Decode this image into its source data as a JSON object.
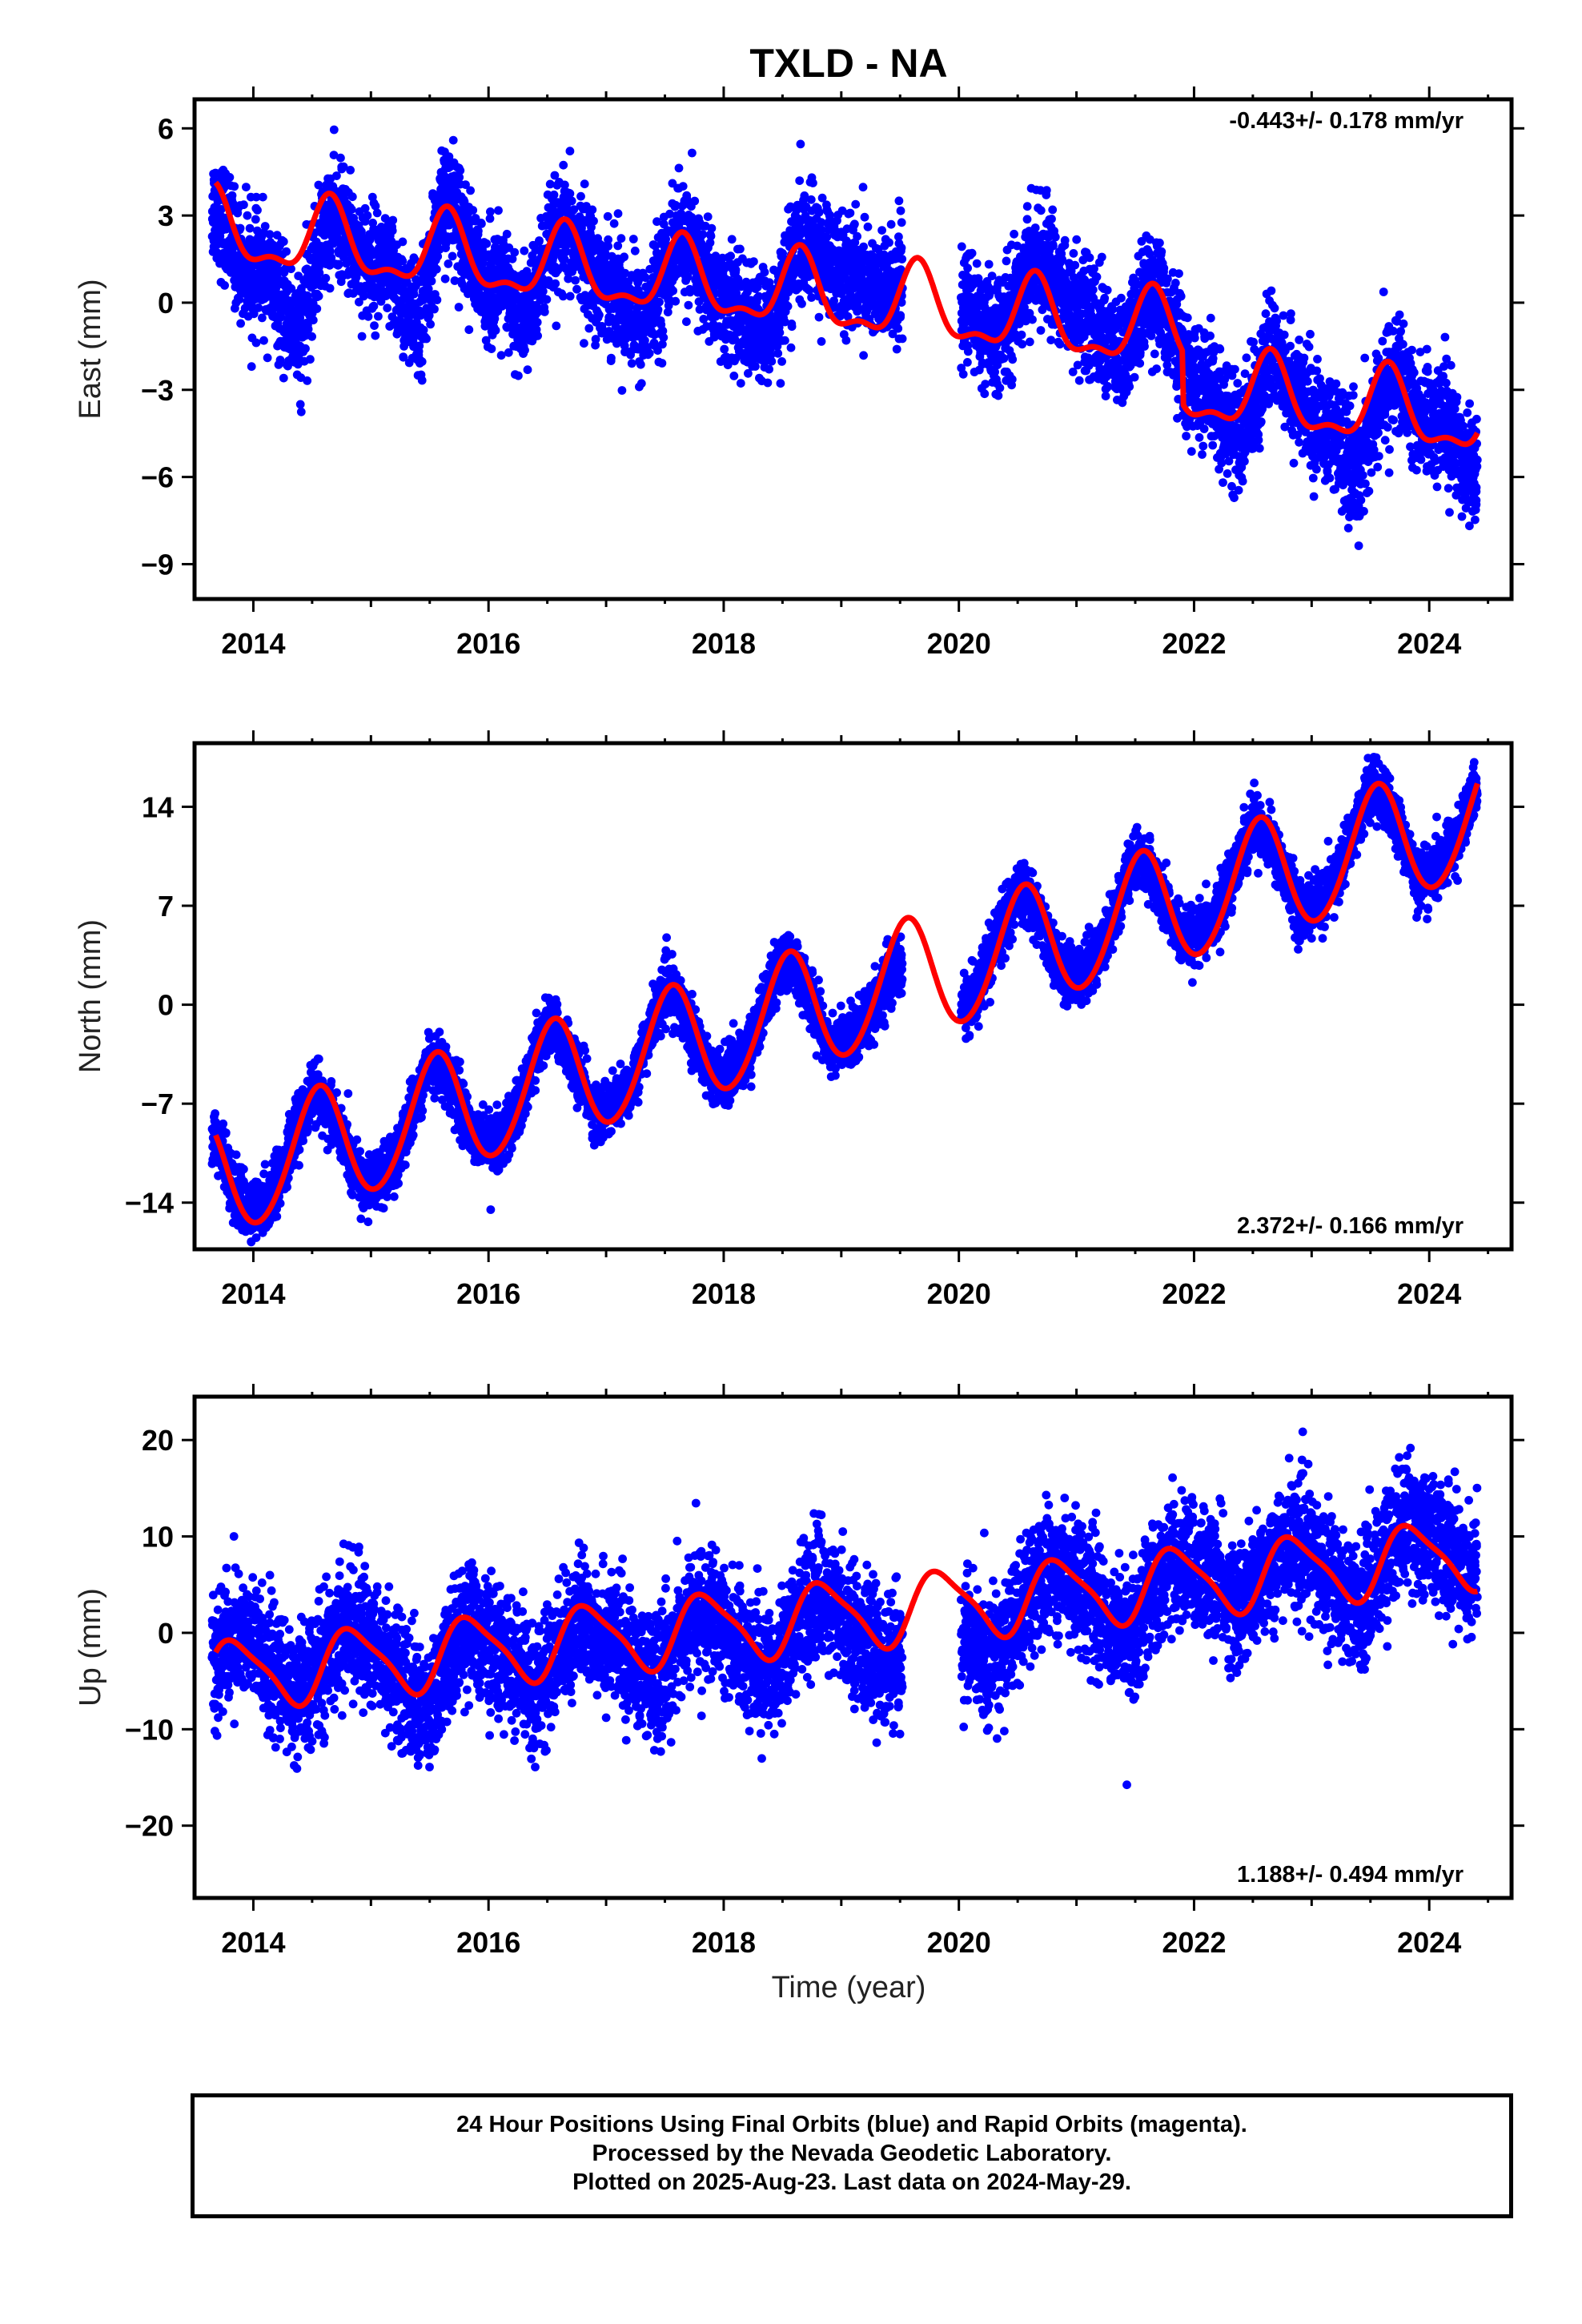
{
  "figure": {
    "title": "TXLD - NA",
    "xlabel": "Time (year)"
  },
  "footer": {
    "line1": "24 Hour Positions Using Final Orbits (blue) and Rapid Orbits (magenta).",
    "line2": "Processed by the Nevada Geodetic Laboratory.",
    "line3": "Plotted on 2025-Aug-23. Last data on 2024-May-29."
  },
  "colors": {
    "points": "#0000ff",
    "model": "#ff0000",
    "frame": "#000000"
  },
  "chart_data": [
    {
      "type": "scatter",
      "title": "TXLD - NA",
      "ylabel": "East (mm)",
      "xlabel": "",
      "xlim": [
        2013.5,
        2024.7
      ],
      "ylim": [
        -10.2,
        7.0
      ],
      "xticks": [
        2014,
        2016,
        2018,
        2020,
        2022,
        2024
      ],
      "yticks": [
        6,
        3,
        0,
        -3,
        -6,
        -9
      ],
      "ytick_labels": [
        "6",
        "3",
        "0",
        "−3",
        "−6",
        "−9"
      ],
      "rate_label": "-0.443+/- 0.178 mm/yr",
      "rate_position": "top-right",
      "grid": false,
      "series": [
        {
          "points": [
            [
              2013.7,
              2.5
            ],
            [
              2013.9,
              1.0
            ],
            [
              2014.1,
              0.5
            ],
            [
              2014.3,
              -2.0
            ],
            [
              2014.4,
              -3.5
            ],
            [
              2014.6,
              1.5
            ],
            [
              2014.7,
              2.5
            ],
            [
              2014.9,
              1.8
            ],
            [
              2015.1,
              1.5
            ],
            [
              2015.3,
              -1.0
            ],
            [
              2015.4,
              -2.5
            ],
            [
              2015.6,
              3.0
            ],
            [
              2015.7,
              4.0
            ],
            [
              2015.9,
              1.0
            ],
            [
              2016.1,
              0.5
            ],
            [
              2016.3,
              -1.5
            ],
            [
              2016.5,
              1.5
            ],
            [
              2016.8,
              2.0
            ],
            [
              2017.1,
              0.5
            ],
            [
              2017.3,
              -1.5
            ],
            [
              2017.6,
              2.0
            ],
            [
              2017.9,
              1.0
            ],
            [
              2018.2,
              -1.0
            ],
            [
              2018.4,
              -1.5
            ],
            [
              2018.6,
              1.5
            ],
            [
              2018.9,
              3.0
            ],
            [
              2019.1,
              2.5
            ],
            [
              2019.4,
              1.0
            ],
            [
              2020.1,
              0.5
            ],
            [
              2020.3,
              -1.5
            ],
            [
              2020.6,
              1.5
            ],
            [
              2020.8,
              2.0
            ],
            [
              2021.1,
              0.5
            ],
            [
              2021.4,
              -2.5
            ],
            [
              2021.6,
              0.5
            ],
            [
              2021.9,
              -1.5
            ],
            [
              2022.2,
              -3.0
            ],
            [
              2022.4,
              -5.5
            ],
            [
              2022.7,
              -1.5
            ],
            [
              2022.9,
              -3.0
            ],
            [
              2023.2,
              -5.0
            ],
            [
              2023.4,
              -7.0
            ],
            [
              2023.7,
              -2.5
            ],
            [
              2023.9,
              -3.5
            ],
            [
              2024.1,
              -3.5
            ],
            [
              2024.4,
              -6.5
            ]
          ]
        },
        {
          "name": "",
          "model": {
            "intercept_2014": 2.35,
            "rate": -0.443,
            "annual_amp": 1.2,
            "annual_peak": 0.65,
            "semi_amp": 0.5,
            "semi_peak": 0.15,
            "offsets": [
              [
                2021.9,
                -1.8
              ]
            ]
          }
        }
      ]
    },
    {
      "type": "scatter",
      "ylabel": "North (mm)",
      "xlabel": "",
      "xlim": [
        2013.5,
        2024.7
      ],
      "ylim": [
        -17.3,
        18.5
      ],
      "xticks": [
        2014,
        2016,
        2018,
        2020,
        2022,
        2024
      ],
      "yticks": [
        14,
        7,
        0,
        -7,
        -14
      ],
      "ytick_labels": [
        "14",
        "7",
        "0",
        "−7",
        "−14"
      ],
      "rate_label": "2.372+/- 0.166 mm/yr",
      "rate_position": "bottom-right",
      "grid": false,
      "series": [
        {
          "points": [
            [
              2013.7,
              -10.0
            ],
            [
              2013.9,
              -14.0
            ],
            [
              2014.1,
              -13.5
            ],
            [
              2014.5,
              -6.5
            ],
            [
              2014.9,
              -12.5
            ],
            [
              2015.2,
              -11.5
            ],
            [
              2015.5,
              -4.0
            ],
            [
              2015.9,
              -9.5
            ],
            [
              2016.2,
              -8.0
            ],
            [
              2016.5,
              -1.5
            ],
            [
              2016.9,
              -7.5
            ],
            [
              2017.2,
              -5.5
            ],
            [
              2017.5,
              1.0
            ],
            [
              2017.9,
              -5.0
            ],
            [
              2018.2,
              -3.0
            ],
            [
              2018.5,
              3.5
            ],
            [
              2018.9,
              -3.0
            ],
            [
              2019.2,
              -0.5
            ],
            [
              2020.1,
              1.0
            ],
            [
              2020.5,
              8.0
            ],
            [
              2020.9,
              2.0
            ],
            [
              2021.2,
              4.5
            ],
            [
              2021.5,
              10.0
            ],
            [
              2021.9,
              4.5
            ],
            [
              2022.2,
              7.5
            ],
            [
              2022.5,
              13.0
            ],
            [
              2022.9,
              6.5
            ],
            [
              2023.2,
              9.5
            ],
            [
              2023.5,
              15.5
            ],
            [
              2023.9,
              9.0
            ],
            [
              2024.2,
              11.5
            ],
            [
              2024.4,
              16.0
            ]
          ]
        },
        {
          "name": "",
          "model": {
            "intercept_2014": -11.5,
            "rate": 2.372,
            "annual_amp": 4.2,
            "annual_peak": 0.55,
            "semi_amp": 0.3,
            "semi_peak": 0.1,
            "offsets": []
          }
        }
      ]
    },
    {
      "type": "scatter",
      "ylabel": "Up (mm)",
      "xlabel": "Time (year)",
      "xlim": [
        2013.5,
        2024.7
      ],
      "ylim": [
        -27.5,
        24.5
      ],
      "xticks": [
        2014,
        2016,
        2018,
        2020,
        2022,
        2024
      ],
      "yticks": [
        20,
        10,
        0,
        -10,
        -20
      ],
      "ytick_labels": [
        "20",
        "10",
        "0",
        "−10",
        "−20"
      ],
      "rate_label": "1.188+/- 0.494 mm/yr",
      "rate_position": "bottom-right",
      "grid": false,
      "series": [
        {
          "points": [
            [
              2013.7,
              -3.0
            ],
            [
              2013.9,
              1.0
            ],
            [
              2014.2,
              -4.0
            ],
            [
              2014.4,
              -6.0
            ],
            [
              2014.8,
              1.0
            ],
            [
              2015.0,
              0.0
            ],
            [
              2015.4,
              -8.0
            ],
            [
              2015.5,
              -12.0
            ],
            [
              2015.8,
              1.0
            ],
            [
              2016.0,
              -2.0
            ],
            [
              2016.4,
              -6.0
            ],
            [
              2016.8,
              0.0
            ],
            [
              2017.0,
              -1.0
            ],
            [
              2017.4,
              -6.0
            ],
            [
              2017.8,
              1.0
            ],
            [
              2018.0,
              -1.0
            ],
            [
              2018.3,
              -5.0
            ],
            [
              2018.8,
              3.0
            ],
            [
              2019.0,
              0.0
            ],
            [
              2019.4,
              -5.0
            ],
            [
              2020.1,
              -4.0
            ],
            [
              2020.2,
              -8.0
            ],
            [
              2020.5,
              2.0
            ],
            [
              2020.9,
              7.0
            ],
            [
              2021.2,
              2.0
            ],
            [
              2021.4,
              -2.0
            ],
            [
              2021.9,
              7.0
            ],
            [
              2022.1,
              7.0
            ],
            [
              2022.4,
              3.0
            ],
            [
              2022.8,
              9.0
            ],
            [
              2023.0,
              8.0
            ],
            [
              2023.4,
              2.0
            ],
            [
              2023.8,
              12.0
            ],
            [
              2024.0,
              11.0
            ],
            [
              2024.3,
              8.0
            ]
          ]
        },
        {
          "name": "",
          "model": {
            "intercept_2014": -4.1,
            "rate": 1.188,
            "annual_amp": 3.5,
            "annual_peak": 0.85,
            "semi_amp": 0.8,
            "semi_peak": 0.2,
            "offsets": []
          }
        }
      ]
    }
  ]
}
